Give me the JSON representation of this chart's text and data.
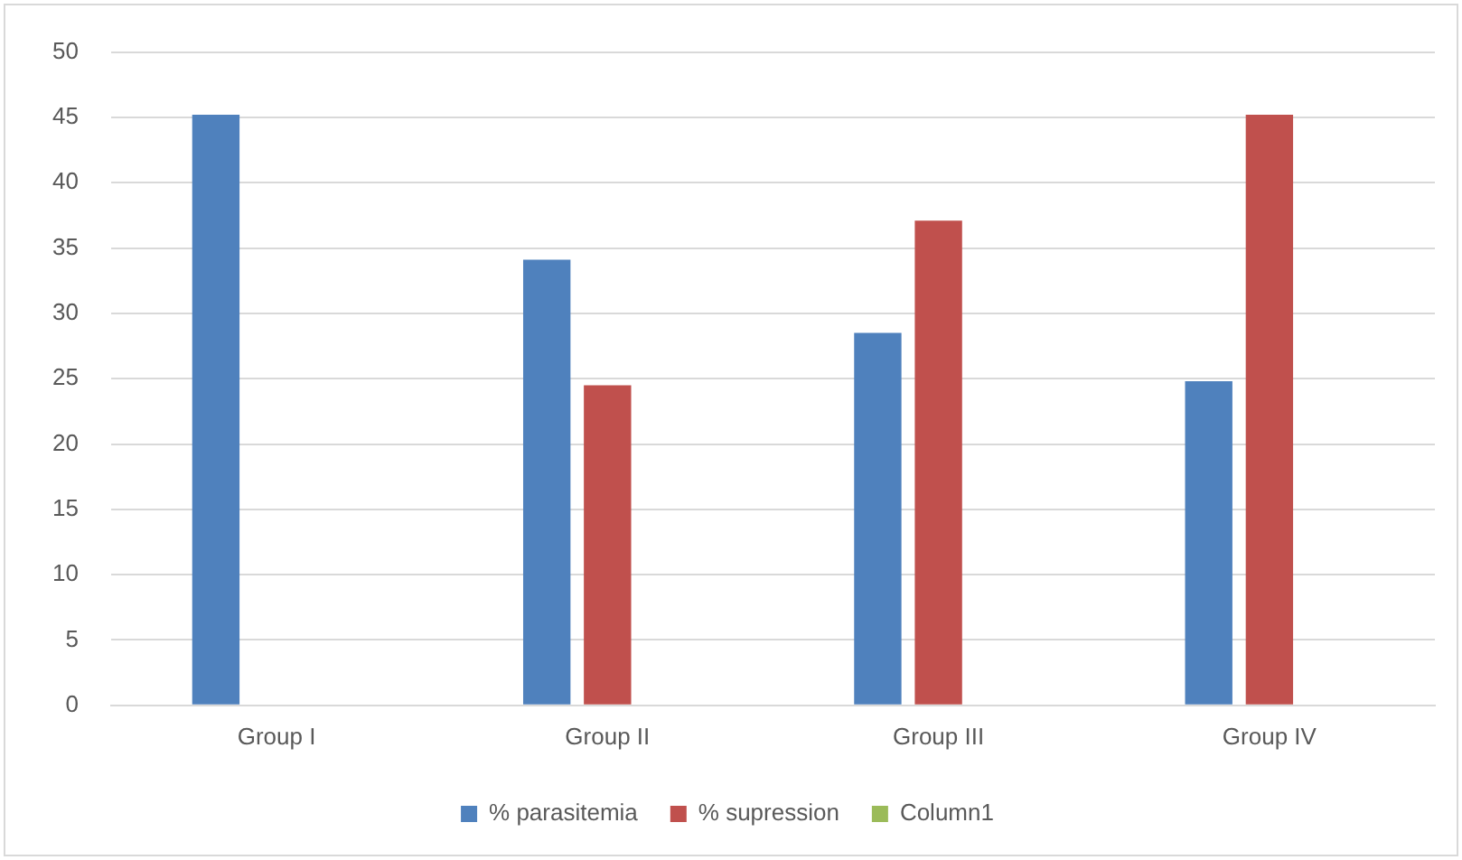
{
  "chart_data": {
    "type": "bar",
    "categories": [
      "Group I",
      "Group II",
      "Group III",
      "Group IV"
    ],
    "series": [
      {
        "name": "% parasitemia",
        "color": "#4f81bd",
        "values": [
          45.2,
          34.1,
          28.5,
          24.8
        ]
      },
      {
        "name": "% supression",
        "color": "#c0504d",
        "values": [
          null,
          24.5,
          37.1,
          45.2
        ]
      },
      {
        "name": "Column1",
        "color": "#9bbb59",
        "values": [
          null,
          null,
          null,
          null
        ]
      }
    ],
    "ylim": [
      0,
      50
    ],
    "yticks": [
      0,
      5,
      10,
      15,
      20,
      25,
      30,
      35,
      40,
      45,
      50
    ],
    "grid": "y",
    "legend": "bottom"
  }
}
